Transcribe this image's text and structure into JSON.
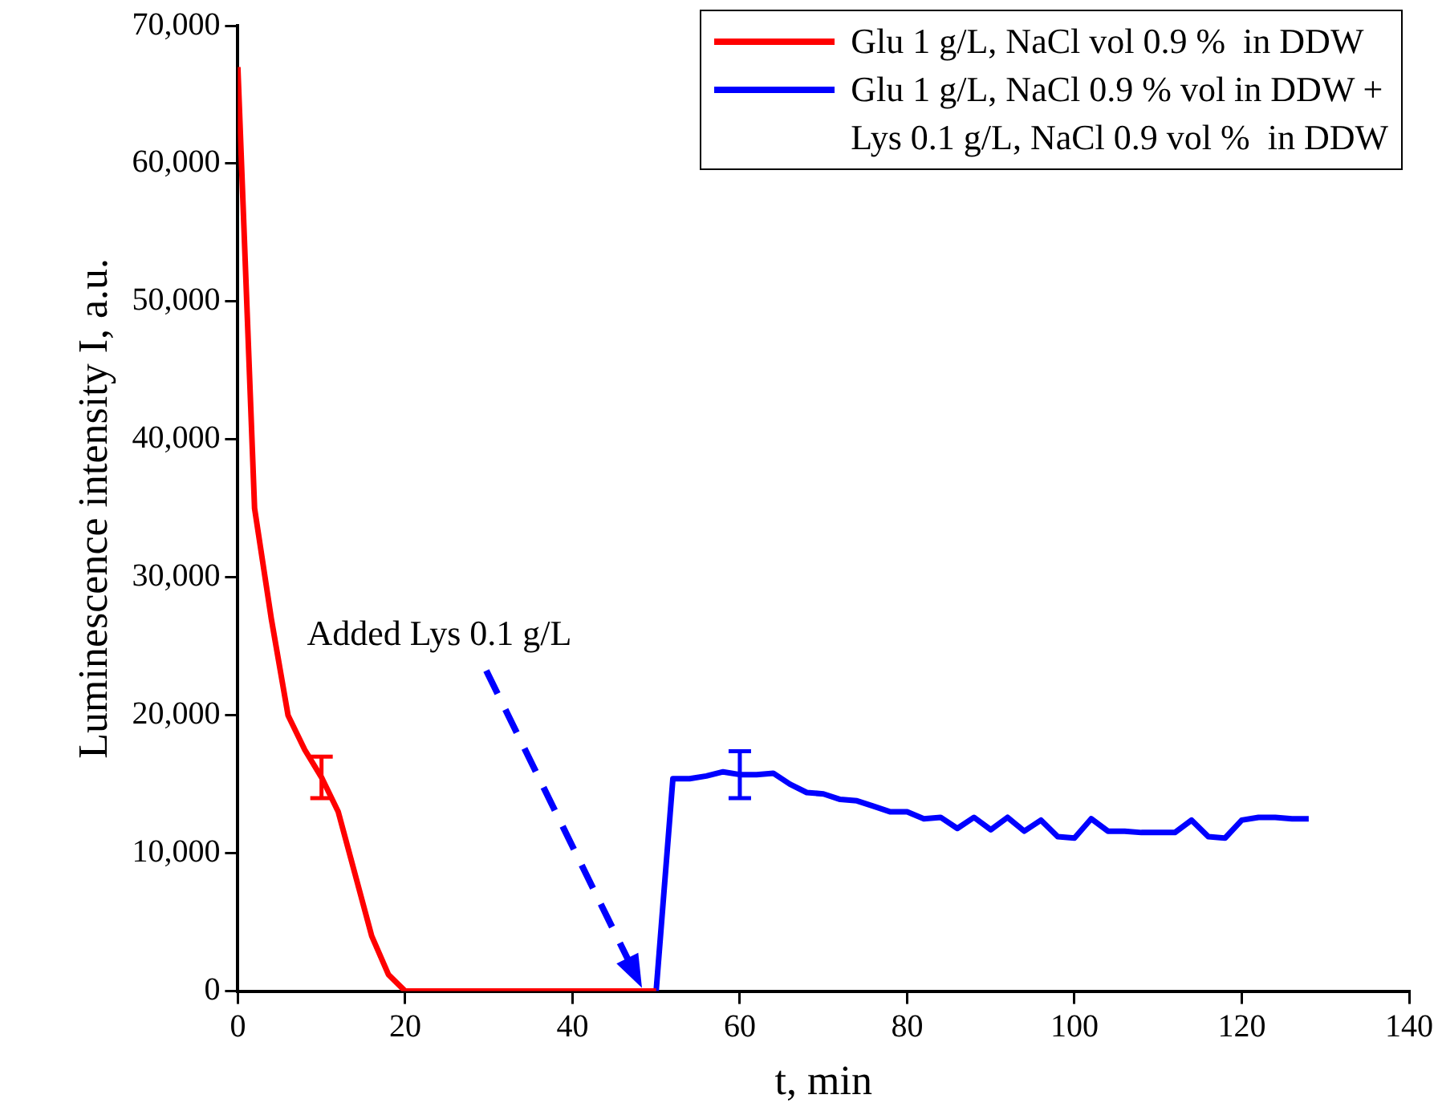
{
  "chart_data": {
    "type": "line",
    "xlabel": "t, min",
    "ylabel": "Luminescence intensity I, a.u.",
    "xlim": [
      0,
      140
    ],
    "xticks": [
      0,
      20,
      40,
      60,
      80,
      100,
      120,
      140
    ],
    "ylim": [
      0,
      70000
    ],
    "yticks": [
      0,
      {
        "value": 10000,
        "label": "10,000"
      },
      {
        "value": 20000,
        "label": "20,000"
      },
      {
        "value": 30000,
        "label": "30,000"
      },
      {
        "value": 40000,
        "label": "40,000"
      },
      {
        "value": 50000,
        "label": "50,000"
      },
      {
        "value": 60000,
        "label": "60,000"
      },
      {
        "value": 70000,
        "label": "70,000"
      }
    ],
    "grid": false,
    "legend": "top right",
    "marker": "none",
    "line_style": "solid",
    "annotations": [
      "Added Lys 0.1 g/L"
    ],
    "series": [
      {
        "name": "Glu 1 g/L, NaCl vol 0.9 %  in DDW",
        "color": "#ff0000",
        "x": [
          0,
          2,
          4,
          6,
          8,
          10,
          12,
          14,
          16,
          18,
          20,
          22,
          24,
          26,
          28,
          30,
          32,
          34,
          36,
          38,
          40,
          42,
          44,
          46,
          48,
          50
        ],
        "values": [
          67000,
          35000,
          27000,
          20000,
          17500,
          15500,
          13000,
          8500,
          4000,
          1200,
          0,
          0,
          0,
          0,
          0,
          0,
          0,
          0,
          0,
          0,
          0,
          0,
          0,
          0,
          0,
          0
        ],
        "errors": [
          null,
          null,
          null,
          null,
          null,
          1500,
          null,
          null,
          null,
          null,
          null,
          null,
          null,
          null,
          null,
          null,
          null,
          null,
          null,
          null,
          null,
          null,
          null,
          null,
          null,
          null
        ]
      },
      {
        "name": "Glu 1 g/L, NaCl 0.9 % vol in DDW +\nLys 0.1 g/L, NaCl 0.9 vol %  in DDW",
        "color": "#0000ff",
        "x": [
          50,
          52,
          54,
          56,
          58,
          60,
          62,
          64,
          66,
          68,
          70,
          72,
          74,
          76,
          78,
          80,
          82,
          84,
          86,
          88,
          90,
          92,
          94,
          96,
          98,
          100,
          102,
          104,
          106,
          108,
          110,
          112,
          114,
          116,
          118,
          120,
          122,
          124,
          126,
          128
        ],
        "values": [
          0,
          15400,
          15400,
          15600,
          15900,
          15700,
          15700,
          15800,
          15000,
          14400,
          14300,
          13900,
          13800,
          13400,
          13000,
          13000,
          12500,
          12600,
          11800,
          12600,
          11700,
          12600,
          11600,
          12400,
          11200,
          11100,
          12500,
          11600,
          11600,
          11500,
          11500,
          11500,
          12400,
          11200,
          11100,
          12400,
          12600,
          12600,
          12500,
          12500
        ],
        "errors": [
          null,
          null,
          null,
          null,
          null,
          1700,
          null,
          null,
          null,
          null,
          null,
          null,
          null,
          null,
          null,
          null,
          null,
          null,
          null,
          null,
          null,
          null,
          null,
          null,
          null,
          null,
          null,
          null,
          null,
          null,
          null,
          null,
          null,
          null,
          null,
          null,
          null,
          null,
          null,
          null
        ]
      }
    ]
  }
}
